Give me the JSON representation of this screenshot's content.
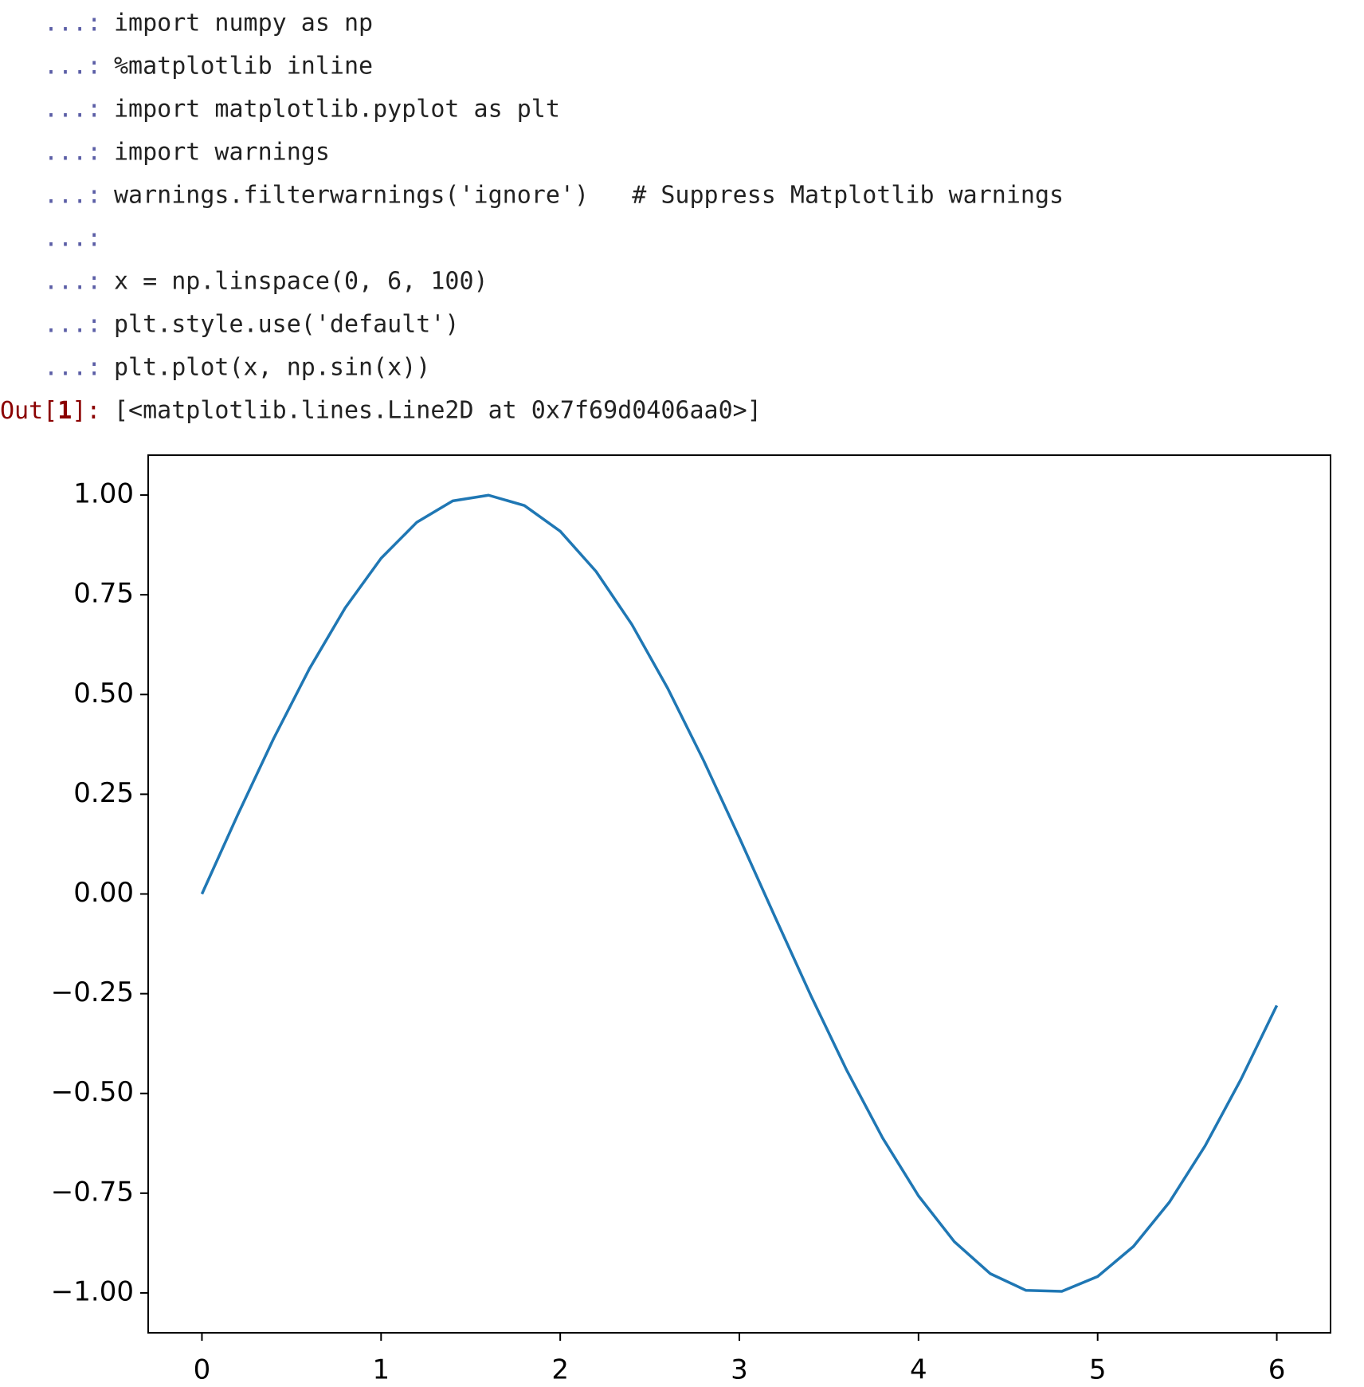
{
  "cell": {
    "lines": [
      {
        "prompt": "...:",
        "code": "import numpy as np"
      },
      {
        "prompt": "...:",
        "code": "%matplotlib inline"
      },
      {
        "prompt": "...:",
        "code": "import matplotlib.pyplot as plt"
      },
      {
        "prompt": "...:",
        "code": "import warnings"
      },
      {
        "prompt": "...:",
        "code": "warnings.filterwarnings('ignore')   # Suppress Matplotlib warnings"
      },
      {
        "prompt": "...:"
      },
      {
        "prompt": "...:",
        "code": "x = np.linspace(0, 6, 100)"
      },
      {
        "prompt": "...:",
        "code": "plt.style.use('default')"
      },
      {
        "prompt": "...:",
        "code": "plt.plot(x, np.sin(x))"
      }
    ],
    "out_prompt": [
      "Out[",
      "1",
      "]:"
    ],
    "output": "[<matplotlib.lines.Line2D at 0x7f69d0406aa0>]"
  },
  "chart_data": {
    "type": "line",
    "x": [
      0,
      0.2,
      0.4,
      0.6,
      0.8,
      1.0,
      1.2,
      1.4,
      1.6,
      1.8,
      2.0,
      2.2,
      2.4,
      2.6,
      2.8,
      3.0,
      3.2,
      3.4,
      3.6,
      3.8,
      4.0,
      4.2,
      4.4,
      4.6,
      4.8,
      5.0,
      5.2,
      5.4,
      5.6,
      5.8,
      6.0
    ],
    "series": [
      {
        "color": "#1f77b4",
        "values": [
          0,
          0.1987,
          0.3894,
          0.5646,
          0.7174,
          0.8415,
          0.932,
          0.9854,
          0.9996,
          0.9738,
          0.9093,
          0.8085,
          0.6755,
          0.5155,
          0.335,
          0.1411,
          -0.0584,
          -0.2555,
          -0.4425,
          -0.6119,
          -0.7568,
          -0.8716,
          -0.9516,
          -0.9937,
          -0.9962,
          -0.9589,
          -0.8835,
          -0.7728,
          -0.6313,
          -0.4646,
          -0.2794
        ]
      }
    ],
    "xlim": [
      -0.3,
      6.3
    ],
    "ylim": [
      -1.1,
      1.1
    ],
    "xticks": [
      0,
      1,
      2,
      3,
      4,
      5,
      6
    ],
    "yticks": [
      {
        "value": -1,
        "label": "−1.00"
      },
      {
        "value": -0.75,
        "label": "−0.75"
      },
      {
        "value": -0.5,
        "label": "−0.50"
      },
      {
        "value": -0.25,
        "label": "−0.25"
      },
      {
        "value": 0,
        "label": "0.00"
      },
      {
        "value": 0.25,
        "label": "0.25"
      },
      {
        "value": 0.5,
        "label": "0.50"
      },
      {
        "value": 0.75,
        "label": "0.75"
      },
      {
        "value": 1,
        "label": "1.00"
      }
    ],
    "grid": false
  }
}
